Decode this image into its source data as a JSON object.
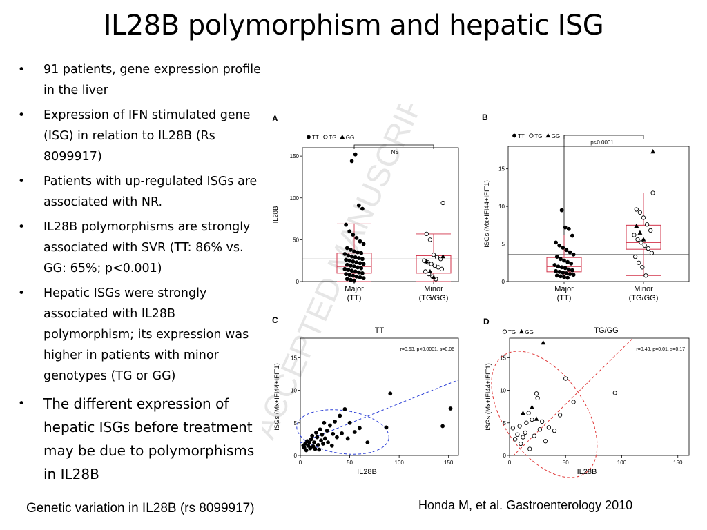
{
  "slide": {
    "title": "IL28B polymorphism and hepatic ISG",
    "bullets": [
      "91 patients, gene expression profile in the liver",
      "Expression of IFN stimulated gene (ISG) in relation to IL28B (Rs 8099917)",
      "Patients with up-regulated ISGs are associated with NR.",
      "IL28B polymorphisms are strongly associated with SVR (TT: 86% vs. GG: 65%; p<0.001)",
      "Hepatic ISGs were strongly associated with IL28B polymorphism; its expression was higher in patients with minor genotypes (TG or GG)",
      "The different expression of hepatic ISGs before treatment may be due to polymorphisms in IL28B"
    ],
    "footer_left": "Genetic variation in IL28B (rs 8099917)",
    "footer_right": "Honda M, et al. Gastroenterology 2010",
    "watermark": "ACCEPTED MANUSCRIPT"
  },
  "figure": {
    "legend": {
      "tt": "TT",
      "tg": "TG",
      "gg": "GG"
    },
    "colors": {
      "box": "#d2334a",
      "fit": "#2b3fd6",
      "ellipse_c": "#2b3fd6",
      "ellipse_d": "#e03a3a",
      "points": "#000000"
    }
  },
  "chart_data": [
    {
      "panel": "A",
      "type": "scatter",
      "categories": [
        "Major\n(TT)",
        "Minor\n(TG/GG)"
      ],
      "category_labels": [
        [
          "Major",
          "(TT)"
        ],
        [
          "Minor",
          "(TG/GG)"
        ]
      ],
      "ylabel": "IL28B",
      "ylim": [
        0,
        160
      ],
      "yticks": [
        0,
        50,
        100,
        150
      ],
      "annotation": "NS",
      "reference_line": 27,
      "boxes": [
        {
          "min": 0,
          "q1": 10,
          "median": 18,
          "q3": 34,
          "max": 69
        },
        {
          "min": 0,
          "q1": 10,
          "median": 21,
          "q3": 31,
          "max": 57
        }
      ],
      "groups": [
        {
          "name": "TT",
          "marker": "filled-circle",
          "values": [
            144,
            152,
            91,
            87,
            68,
            60,
            56,
            52,
            48,
            45,
            40,
            38,
            36,
            35,
            34,
            33,
            31,
            30,
            29,
            28,
            27,
            26,
            25,
            24,
            23,
            22,
            21,
            20,
            19,
            18,
            17,
            16,
            15,
            14,
            13,
            12,
            11,
            10,
            9,
            8,
            7,
            6,
            5,
            4,
            3,
            2,
            1
          ]
        },
        {
          "name": "TG",
          "marker": "open-circle",
          "values": [
            94,
            57,
            50,
            32,
            29,
            27,
            25,
            23,
            21,
            19,
            17,
            15,
            12,
            9,
            6,
            3
          ]
        },
        {
          "name": "GG",
          "marker": "filled-triangle",
          "values": [
            30,
            24,
            12,
            5
          ]
        }
      ]
    },
    {
      "panel": "B",
      "type": "scatter",
      "categories": [
        "Major\n(TT)",
        "Minor\n(TG/GG)"
      ],
      "category_labels": [
        [
          "Major",
          "(TT)"
        ],
        [
          "Minor",
          "(TG/GG)"
        ]
      ],
      "ylabel": "ISGs (Mx+IFI44+IFIT1)",
      "ylim": [
        0,
        18
      ],
      "yticks": [
        0,
        5,
        10,
        15
      ],
      "annotation": "p<0.0001",
      "reference_line": 3.6,
      "boxes": [
        {
          "min": 0.6,
          "q1": 1.3,
          "median": 2.0,
          "q3": 3.2,
          "max": 6.2
        },
        {
          "min": 0.8,
          "q1": 4.3,
          "median": 5.2,
          "q3": 7.5,
          "max": 11.8
        }
      ],
      "groups": [
        {
          "name": "TT",
          "marker": "filled-circle",
          "values": [
            9.5,
            7.2,
            7.0,
            6.1,
            5.2,
            4.8,
            4.5,
            4.2,
            3.9,
            3.6,
            3.3,
            3.0,
            2.8,
            2.6,
            2.4,
            2.2,
            2.0,
            1.9,
            1.8,
            1.6,
            1.5,
            1.4,
            1.3,
            1.2,
            1.1,
            1.0,
            0.9,
            0.8,
            0.7,
            0.6,
            0.5
          ]
        },
        {
          "name": "TG",
          "marker": "open-circle",
          "values": [
            11.8,
            9.6,
            9.2,
            8.5,
            7.6,
            6.8,
            6.2,
            5.6,
            5.2,
            4.8,
            4.4,
            3.8,
            3.3,
            2.5,
            1.9,
            0.8
          ]
        },
        {
          "name": "GG",
          "marker": "filled-triangle",
          "values": [
            17.3,
            7.4,
            6.5,
            5.6
          ]
        }
      ]
    },
    {
      "panel": "C",
      "type": "scatter",
      "title": "TT",
      "xlabel": "IL28B",
      "ylabel": "ISGs (Mx+IFI44+IFIT1)",
      "xlim": [
        0,
        160
      ],
      "ylim": [
        0,
        18
      ],
      "xticks": [
        0,
        50,
        100,
        150
      ],
      "yticks": [
        0,
        5,
        10,
        15
      ],
      "annotation": "r=0.63, p<0.0001, s=0.06",
      "fit_line": [
        [
          0,
          1.9
        ],
        [
          160,
          11.6
        ]
      ],
      "ellipse": {
        "cx": 43,
        "cy": 3.6,
        "rx": 47,
        "ry": 3.3,
        "angle_deg": -8
      },
      "points": [
        [
          3,
          1.5
        ],
        [
          4,
          1.2
        ],
        [
          5,
          1.8
        ],
        [
          6,
          0.8
        ],
        [
          7,
          2.2
        ],
        [
          8,
          1.5
        ],
        [
          9,
          2.0
        ],
        [
          10,
          1.1
        ],
        [
          11,
          2.5
        ],
        [
          12,
          3.0
        ],
        [
          13,
          1.4
        ],
        [
          14,
          2.0
        ],
        [
          15,
          1.0
        ],
        [
          16,
          3.5
        ],
        [
          17,
          2.8
        ],
        [
          18,
          1.6
        ],
        [
          19,
          0.9
        ],
        [
          20,
          4.0
        ],
        [
          21,
          2.3
        ],
        [
          22,
          3.2
        ],
        [
          23,
          1.8
        ],
        [
          24,
          5.0
        ],
        [
          25,
          2.6
        ],
        [
          27,
          3.8
        ],
        [
          28,
          2.0
        ],
        [
          30,
          4.6
        ],
        [
          32,
          1.5
        ],
        [
          33,
          3.3
        ],
        [
          35,
          5.2
        ],
        [
          37,
          2.8
        ],
        [
          40,
          6.1
        ],
        [
          42,
          3.4
        ],
        [
          45,
          7.1
        ],
        [
          48,
          2.6
        ],
        [
          50,
          5.0
        ],
        [
          55,
          3.6
        ],
        [
          60,
          4.2
        ],
        [
          68,
          2.0
        ],
        [
          87,
          4.3
        ],
        [
          91,
          9.5
        ],
        [
          144,
          4.5
        ],
        [
          152,
          7.2
        ]
      ]
    },
    {
      "panel": "D",
      "type": "scatter",
      "title": "TG/GG",
      "xlabel": "IL28B",
      "ylabel": "ISGs (Mx+IFI44+IFIT1)",
      "xlim": [
        0,
        160
      ],
      "ylim": [
        0,
        18
      ],
      "xticks": [
        0,
        50,
        100,
        150
      ],
      "yticks": [
        0,
        5,
        10,
        15
      ],
      "annotation": "r=0.43, p=0.01, s=0.17",
      "fit_line": [
        [
          0,
          -0.6
        ],
        [
          110,
          18
        ]
      ],
      "ellipse": {
        "cx": 31,
        "cy": 6.3,
        "rx": 36,
        "ry": 11,
        "angle_deg": 35
      },
      "groups": [
        {
          "name": "TG",
          "marker": "open-circle",
          "points": [
            [
              3,
              4.2
            ],
            [
              5,
              2.5
            ],
            [
              7,
              3.2
            ],
            [
              9,
              4.5
            ],
            [
              10,
              1.8
            ],
            [
              12,
              2.8
            ],
            [
              14,
              3.5
            ],
            [
              15,
              5.0
            ],
            [
              17,
              6.5
            ],
            [
              18,
              1.0
            ],
            [
              20,
              5.5
            ],
            [
              22,
              3.0
            ],
            [
              24,
              9.5
            ],
            [
              25,
              8.8
            ],
            [
              27,
              4.0
            ],
            [
              29,
              5.2
            ],
            [
              32,
              2.2
            ],
            [
              35,
              4.3
            ],
            [
              40,
              3.8
            ],
            [
              45,
              6.2
            ],
            [
              50,
              11.8
            ],
            [
              57,
              8.2
            ],
            [
              94,
              9.6
            ]
          ]
        },
        {
          "name": "GG",
          "marker": "filled-triangle",
          "points": [
            [
              12,
              6.5
            ],
            [
              20,
              7.4
            ],
            [
              24,
              5.6
            ],
            [
              30,
              17.3
            ]
          ]
        }
      ]
    }
  ]
}
